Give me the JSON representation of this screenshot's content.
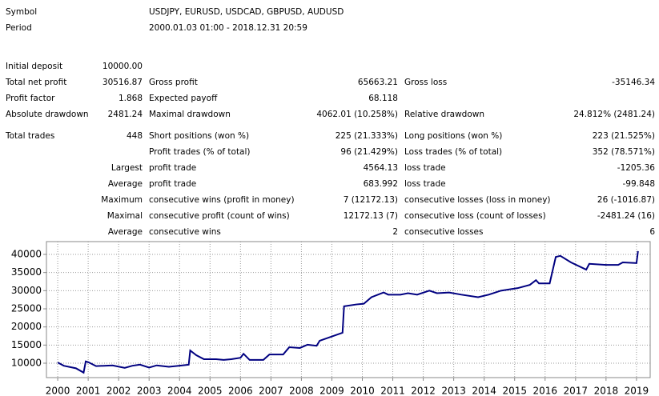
{
  "report": {
    "info": [
      [
        "Symbol",
        "USDJPY, EURUSD, USDCAD, GBPUSD, AUDUSD"
      ],
      [
        "Period",
        "2000.01.03 01:00 - 2018.12.31 20:59"
      ]
    ],
    "rows": [
      [
        "Initial deposit",
        "10000.00",
        null,
        null,
        null,
        null
      ],
      [
        "Total net profit",
        "30516.87",
        "Gross profit",
        "65663.21",
        "Gross loss",
        "-35146.34"
      ],
      [
        "Profit factor",
        "1.868",
        "Expected payoff",
        "68.118",
        null,
        null
      ],
      [
        "Absolute drawdown",
        "2481.24",
        "Maximal drawdown",
        "4062.01 (10.258%)",
        "Relative drawdown",
        "24.812% (2481.24)"
      ],
      [
        "Total trades",
        "448",
        "Short positions (won %)",
        "225 (21.333%)",
        "Long positions (won %)",
        "223 (21.525%)"
      ],
      [
        null,
        null,
        "Profit trades (% of total)",
        "96 (21.429%)",
        "Loss trades (% of total)",
        "352 (78.571%)"
      ],
      [
        null,
        "Largest",
        "profit trade",
        "4564.13",
        "loss trade",
        "-1205.36"
      ],
      [
        null,
        "Average",
        "profit trade",
        "683.992",
        "loss trade",
        "-99.848"
      ],
      [
        null,
        "Maximum",
        "consecutive wins (profit in money)",
        "7 (12172.13)",
        "consecutive losses (loss in money)",
        "26 (-1016.87)"
      ],
      [
        null,
        "Maximal",
        "consecutive profit (count of wins)",
        "12172.13 (7)",
        "consecutive loss (count of losses)",
        "-2481.24 (16)"
      ],
      [
        null,
        "Average",
        "consecutive wins",
        "2",
        "consecutive losses",
        "6"
      ]
    ]
  },
  "chart_data": {
    "type": "line",
    "x": [
      2000.0,
      2000.2,
      2000.6,
      2000.85,
      2000.92,
      2001.0,
      2001.26,
      2001.8,
      2002.2,
      2002.45,
      2002.7,
      2003.0,
      2003.25,
      2003.65,
      2004.0,
      2004.3,
      2004.35,
      2004.55,
      2004.8,
      2005.2,
      2005.45,
      2005.7,
      2006.0,
      2006.1,
      2006.3,
      2006.75,
      2006.95,
      2007.4,
      2007.6,
      2007.95,
      2008.2,
      2008.5,
      2008.6,
      2009.35,
      2009.4,
      2009.8,
      2010.05,
      2010.3,
      2010.7,
      2010.85,
      2011.25,
      2011.5,
      2011.8,
      2012.2,
      2012.45,
      2012.85,
      2013.25,
      2013.8,
      2014.15,
      2014.55,
      2015.1,
      2015.5,
      2015.7,
      2015.8,
      2016.15,
      2016.35,
      2016.5,
      2016.85,
      2017.35,
      2017.45,
      2018.0,
      2018.4,
      2018.55,
      2019.0,
      2019.05
    ],
    "series": [
      {
        "color": "#000080",
        "values": [
          10200,
          9300,
          8600,
          7400,
          10500,
          10300,
          9200,
          9400,
          8700,
          9300,
          9600,
          8800,
          9400,
          9000,
          9300,
          9600,
          13500,
          12200,
          11100,
          11100,
          10900,
          11100,
          11500,
          12600,
          10900,
          10900,
          12400,
          12400,
          14400,
          14200,
          15100,
          14800,
          16200,
          18400,
          25700,
          26200,
          26400,
          28200,
          29500,
          28900,
          28900,
          29300,
          28900,
          30000,
          29300,
          29500,
          28900,
          28200,
          28900,
          30000,
          30700,
          31600,
          32900,
          32000,
          32000,
          39300,
          39600,
          37800,
          35800,
          37400,
          37100,
          37100,
          37800,
          37600,
          40900
        ]
      }
    ],
    "xlim": [
      1999.63,
      2019.45
    ],
    "ylim": [
      6030,
      43530
    ],
    "xticks": [
      2000,
      2001,
      2002,
      2003,
      2004,
      2005,
      2006,
      2007,
      2008,
      2009,
      2010,
      2011,
      2012,
      2013,
      2014,
      2015,
      2016,
      2017,
      2018,
      2019
    ],
    "yticks": [
      10000,
      15000,
      20000,
      25000,
      30000,
      35000,
      40000
    ],
    "grid": true
  }
}
